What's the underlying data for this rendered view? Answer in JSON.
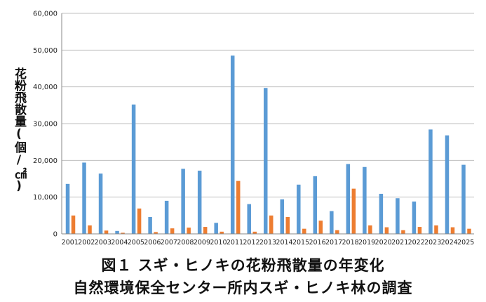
{
  "chart_data": {
    "type": "bar",
    "title_line1": "図１ スギ・ヒノキの花粉飛散量の年変化",
    "title_line2": "自然環境保全センター所内スギ・ヒノキ林の調査",
    "ylabel": "花粉飛散量(個/㎠)",
    "xlabel": "",
    "ylim": [
      0,
      60000
    ],
    "yticks": [
      "0",
      "10,000",
      "20,000",
      "30,000",
      "40,000",
      "50,000",
      "60,000"
    ],
    "grid": true,
    "categories": [
      "2001",
      "2002",
      "2003",
      "2004",
      "2005",
      "2006",
      "2007",
      "2008",
      "2009",
      "2010",
      "2011",
      "2012",
      "2013",
      "2014",
      "2015",
      "2016",
      "2017",
      "2018",
      "2019",
      "2020",
      "2021",
      "2022",
      "2023",
      "2024",
      "2025"
    ],
    "series": [
      {
        "color": "#5B9BD5",
        "values": [
          13600,
          19400,
          16400,
          800,
          35200,
          4600,
          9000,
          17700,
          17200,
          3000,
          48500,
          8100,
          39700,
          9400,
          13400,
          15700,
          6200,
          19000,
          18200,
          10900,
          9700,
          8800,
          28400,
          26800,
          18800
        ]
      },
      {
        "color": "#ED7D31",
        "values": [
          5000,
          2300,
          900,
          300,
          6900,
          500,
          1500,
          1700,
          1900,
          600,
          14400,
          600,
          5000,
          4600,
          1400,
          3600,
          1000,
          12300,
          2300,
          1800,
          1000,
          1900,
          2300,
          1800,
          1400
        ]
      }
    ]
  }
}
